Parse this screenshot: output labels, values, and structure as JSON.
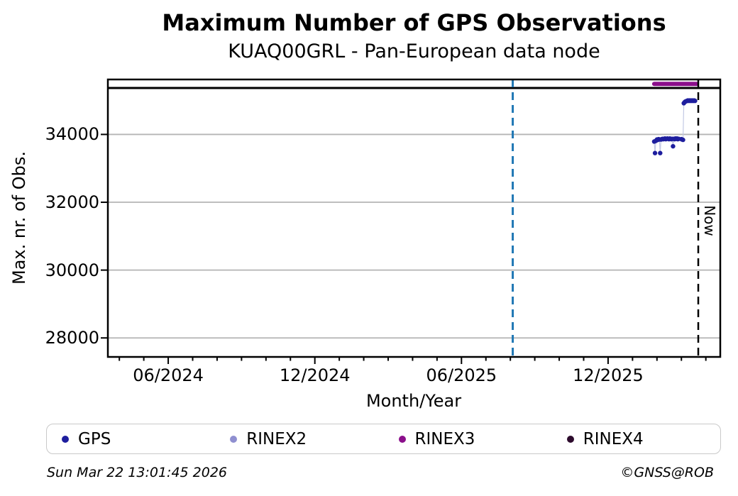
{
  "header": {
    "title": "Maximum Number of GPS Observations",
    "subtitle": "KUAQ00GRL - Pan-European data node"
  },
  "footer": {
    "timestamp": "Sun Mar 22 13:01:45 2026",
    "credit": "©GNSS@ROB"
  },
  "legend": {
    "items": [
      {
        "label": "GPS",
        "color": "#1e1e9e"
      },
      {
        "label": "RINEX2",
        "color": "#8f8fd0"
      },
      {
        "label": "RINEX3",
        "color": "#8b0f8b"
      },
      {
        "label": "RINEX4",
        "color": "#2d0b2d"
      }
    ]
  },
  "chart_data": {
    "type": "scatter",
    "title": "Maximum Number of GPS Observations",
    "subtitle": "KUAQ00GRL - Pan-European data node",
    "xlabel": "Month/Year",
    "ylabel": "Max. nr. of Obs.",
    "ylim": [
      27440,
      35620
    ],
    "y_ticks": [
      28000,
      30000,
      32000,
      34000
    ],
    "grid": true,
    "legend_position": "bottom",
    "x_axis": {
      "anchor": "2024-06-01",
      "months_range": [
        -2.47,
        22.59
      ],
      "major_ticks": [
        {
          "m": 0,
          "label": "06/2024"
        },
        {
          "m": 6,
          "label": "12/2024"
        },
        {
          "m": 12,
          "label": "06/2025"
        },
        {
          "m": 18,
          "label": "12/2025"
        }
      ],
      "minor_ticks_every_month": true
    },
    "reference_line": {
      "value": 35370,
      "color": "#000000"
    },
    "vlines": [
      {
        "date": "2025-08-04",
        "color": "#1f77b4",
        "style": "dashed",
        "label": ""
      },
      {
        "date": "2026-03-22",
        "color": "#000000",
        "style": "dashed",
        "label": "Now"
      }
    ],
    "availability_spans": [
      {
        "name": "RINEX3",
        "start": "2026-01-28",
        "end": "2026-03-20",
        "value": 35490,
        "color": "#8b0f8b"
      }
    ],
    "series": [
      {
        "name": "GPS",
        "color": "#1e1e9e",
        "connector_color": "#c3c9e4",
        "points": [
          [
            "2026-01-28",
            33790
          ],
          [
            "2026-01-29",
            33450
          ],
          [
            "2026-01-30",
            33810
          ],
          [
            "2026-01-31",
            33830
          ],
          [
            "2026-02-01",
            33850
          ],
          [
            "2026-02-02",
            33840
          ],
          [
            "2026-02-03",
            33860
          ],
          [
            "2026-02-04",
            33850
          ],
          [
            "2026-02-05",
            33450
          ],
          [
            "2026-02-06",
            33850
          ],
          [
            "2026-02-07",
            33860
          ],
          [
            "2026-02-08",
            33870
          ],
          [
            "2026-02-09",
            33860
          ],
          [
            "2026-02-10",
            33870
          ],
          [
            "2026-02-11",
            33880
          ],
          [
            "2026-02-12",
            33860
          ],
          [
            "2026-02-13",
            33870
          ],
          [
            "2026-02-14",
            33880
          ],
          [
            "2026-02-15",
            33870
          ],
          [
            "2026-02-16",
            33860
          ],
          [
            "2026-02-17",
            33880
          ],
          [
            "2026-02-18",
            33870
          ],
          [
            "2026-02-19",
            33860
          ],
          [
            "2026-02-20",
            33870
          ],
          [
            "2026-02-21",
            33650
          ],
          [
            "2026-02-22",
            33870
          ],
          [
            "2026-02-23",
            33860
          ],
          [
            "2026-02-24",
            33880
          ],
          [
            "2026-02-25",
            33870
          ],
          [
            "2026-02-26",
            33880
          ],
          [
            "2026-02-27",
            33860
          ],
          [
            "2026-02-28",
            33870
          ],
          [
            "2026-03-01",
            33860
          ],
          [
            "2026-03-02",
            33850
          ],
          [
            "2026-03-03",
            33840
          ],
          [
            "2026-03-04",
            34920
          ],
          [
            "2026-03-05",
            34950
          ],
          [
            "2026-03-06",
            34970
          ],
          [
            "2026-03-07",
            34980
          ],
          [
            "2026-03-08",
            34990
          ],
          [
            "2026-03-09",
            35000
          ],
          [
            "2026-03-10",
            34990
          ],
          [
            "2026-03-11",
            35000
          ],
          [
            "2026-03-12",
            34990
          ],
          [
            "2026-03-13",
            35000
          ],
          [
            "2026-03-14",
            34990
          ],
          [
            "2026-03-15",
            35000
          ],
          [
            "2026-03-16",
            34990
          ],
          [
            "2026-03-17",
            35000
          ],
          [
            "2026-03-18",
            34990
          ]
        ]
      }
    ]
  }
}
